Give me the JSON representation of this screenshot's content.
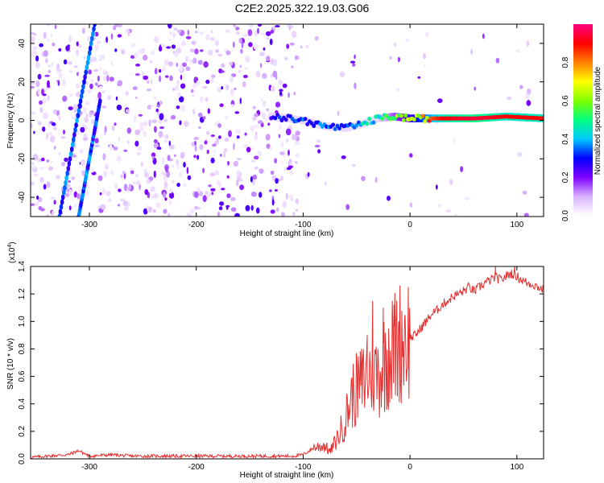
{
  "title": "C2E2.2025.322.19.03.G06",
  "chart_data": [
    {
      "type": "heatmap",
      "xlabel": "Height of straight line (km)",
      "ylabel": "Frequency (Hz)",
      "xlim": [
        -355,
        125
      ],
      "ylim": [
        -50,
        50
      ],
      "xticks": [
        -300,
        -200,
        -100,
        0,
        100
      ],
      "yticks": [
        -40,
        -20,
        0,
        20,
        40
      ],
      "colorbar": {
        "label": "Normalized spectral amplitude",
        "range": [
          0,
          1
        ],
        "ticks": [
          "0.0",
          "0.2",
          "0.4",
          "0.6",
          "0.8"
        ],
        "colors": [
          "#ffffff",
          "#d9b3ff",
          "#7f00ff",
          "#0000ff",
          "#00c8ff",
          "#00ff80",
          "#80ff00",
          "#ffff00",
          "#ff8000",
          "#ff0000",
          "#ff0080"
        ]
      },
      "features": [
        {
          "name": "main ridge",
          "x": [
            -130,
            -100,
            -80,
            -60,
            -45,
            -30,
            -15,
            0,
            30,
            60,
            90,
            125
          ],
          "freq": [
            2,
            0,
            -3,
            -4,
            -2,
            1,
            2,
            1,
            1,
            1,
            2,
            1
          ],
          "amplitude": [
            0.3,
            0.35,
            0.35,
            0.35,
            0.45,
            0.5,
            0.6,
            0.7,
            0.9,
            0.95,
            0.9,
            0.9
          ]
        },
        {
          "name": "diagonal streak 1",
          "x": [
            -328,
            -295
          ],
          "freq": [
            -50,
            50
          ]
        },
        {
          "name": "diagonal streak 2",
          "x": [
            -310,
            -290
          ],
          "freq": [
            -50,
            10
          ]
        }
      ]
    },
    {
      "type": "line",
      "xlabel": "Height of straight line (km)",
      "ylabel": "SNR (10 * v/v)",
      "yscale_label": "(x10",
      "yscale_exp": "4",
      "xlim": [
        -355,
        125
      ],
      "ylim": [
        0,
        1.4
      ],
      "xticks": [
        -300,
        -200,
        -100,
        0,
        100
      ],
      "yticks": [
        "0.0",
        "0.2",
        "0.4",
        "0.6",
        "0.8",
        "1.0",
        "1.2",
        "1.4"
      ],
      "color": "#e53030",
      "series": [
        {
          "name": "SNR",
          "x": [
            -355,
            -340,
            -320,
            -310,
            -300,
            -280,
            -260,
            -240,
            -220,
            -200,
            -180,
            -160,
            -140,
            -120,
            -110,
            -100,
            -90,
            -80,
            -75,
            -70,
            -65,
            -60,
            -55,
            -50,
            -45,
            -40,
            -35,
            -30,
            -25,
            -20,
            -15,
            -10,
            -5,
            0,
            5,
            10,
            15,
            20,
            25,
            30,
            35,
            40,
            45,
            50,
            55,
            60,
            65,
            70,
            75,
            80,
            85,
            90,
            95,
            100,
            105,
            110,
            115,
            120,
            125
          ],
          "y": [
            0.01,
            0.02,
            0.03,
            0.06,
            0.02,
            0.03,
            0.02,
            0.02,
            0.02,
            0.02,
            0.02,
            0.02,
            0.02,
            0.02,
            0.02,
            0.03,
            0.08,
            0.1,
            0.05,
            0.12,
            0.2,
            0.3,
            0.45,
            0.5,
            0.55,
            0.6,
            0.65,
            0.6,
            0.7,
            0.75,
            0.8,
            0.85,
            0.9,
            0.88,
            0.9,
            0.95,
            1.0,
            1.05,
            1.08,
            1.12,
            1.15,
            1.18,
            1.2,
            1.22,
            1.25,
            1.22,
            1.25,
            1.28,
            1.3,
            1.32,
            1.3,
            1.33,
            1.35,
            1.33,
            1.3,
            1.28,
            1.27,
            1.25,
            1.23
          ],
          "spikes": [
            {
              "x": -45,
              "y": 0.72
            },
            {
              "x": -40,
              "y": 0.9
            },
            {
              "x": -35,
              "y": 1.15
            },
            {
              "x": -30,
              "y": 0.8
            },
            {
              "x": -25,
              "y": 1.1
            },
            {
              "x": -20,
              "y": 0.95
            },
            {
              "x": -15,
              "y": 1.12
            },
            {
              "x": -10,
              "y": 1.0
            },
            {
              "x": -5,
              "y": 1.03
            },
            {
              "x": 80,
              "y": 1.4
            },
            {
              "x": 98,
              "y": 1.4
            }
          ]
        }
      ]
    }
  ]
}
